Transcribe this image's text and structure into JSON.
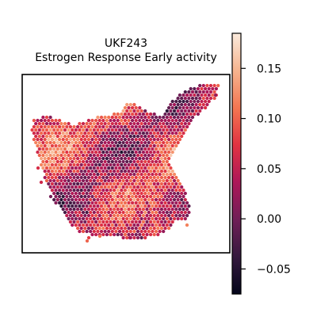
{
  "chart_data": {
    "type": "heatmap",
    "title": "UKF243",
    "subtitle": "Estrogen Response Early activity",
    "xlabel": "",
    "ylabel": "",
    "grid": false,
    "colormap": "rocket",
    "color_stops": [
      "#03051a",
      "#35193e",
      "#701f57",
      "#ad1759",
      "#e13342",
      "#f37651",
      "#f6b48f",
      "#faebdd"
    ],
    "colorbar": {
      "range": [
        -0.075,
        0.185
      ],
      "ticks": [
        -0.05,
        0.0,
        0.05,
        0.1,
        0.15
      ],
      "tick_labels": [
        "−0.05",
        "0.00",
        "0.05",
        "0.10",
        "0.15"
      ]
    },
    "spots": {
      "description_of_shape": "irregular tissue section of hexagonal spots",
      "value_range": [
        -0.075,
        0.185
      ],
      "typical_value": 0.06
    }
  }
}
